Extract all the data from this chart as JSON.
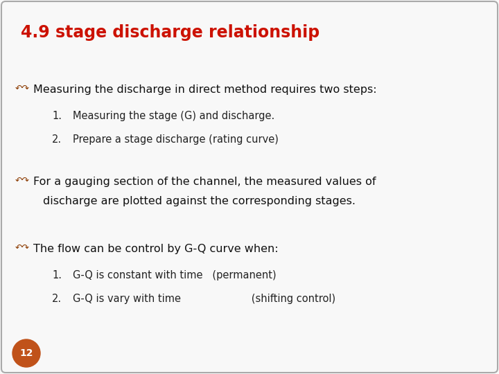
{
  "title": "4.9 stage discharge relationship",
  "title_color": "#cc1100",
  "title_fontsize": 17,
  "background_color": "#f8f8f8",
  "border_color": "#aaaaaa",
  "bullet_color": "#8B3A00",
  "bullet1_text": "Measuring the discharge in direct method requires two steps:",
  "bullet1_sub": [
    "Measuring the stage (G) and discharge.",
    "Prepare a stage discharge (rating curve)"
  ],
  "bullet2_line1": "For a gauging section of the channel, the measured values of",
  "bullet2_line2": "discharge are plotted against the corresponding stages.",
  "bullet3_text": "The flow can be control by G-Q curve when:",
  "bullet3_sub": [
    "G-Q is constant with time   (permanent)",
    "G-Q is vary with time                      (shifting control)"
  ],
  "page_number": "12",
  "page_badge_color": "#c0521a",
  "text_color": "#111111",
  "sub_text_color": "#222222",
  "font_size_bullet": 11.5,
  "font_size_sub": 10.5,
  "font_size_title": 17
}
